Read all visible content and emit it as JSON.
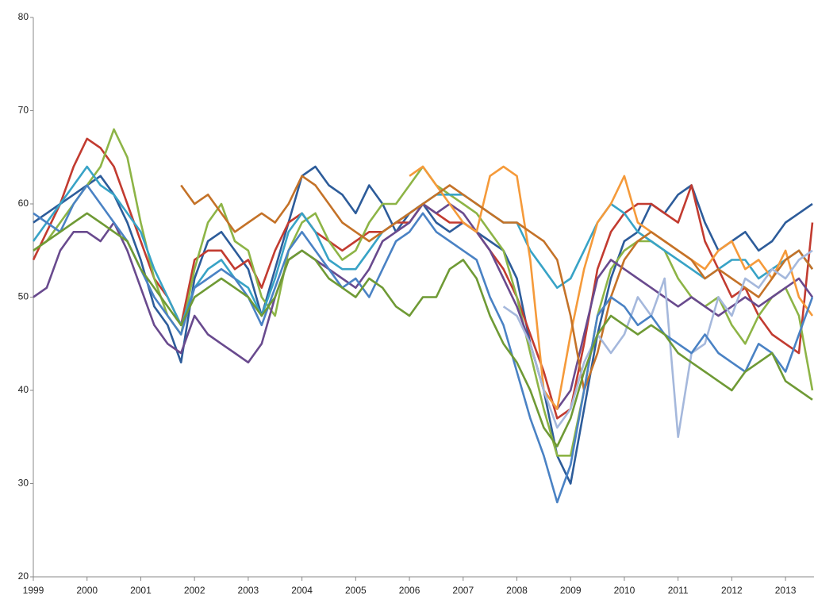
{
  "chart_data": {
    "type": "line",
    "x": [
      1999,
      1999.25,
      1999.5,
      1999.75,
      2000,
      2000.25,
      2000.5,
      2000.75,
      2001,
      2001.25,
      2001.5,
      2001.75,
      2002,
      2002.25,
      2002.5,
      2002.75,
      2003,
      2003.25,
      2003.5,
      2003.75,
      2004,
      2004.25,
      2004.5,
      2004.75,
      2005,
      2005.25,
      2005.5,
      2005.75,
      2006,
      2006.25,
      2006.5,
      2006.75,
      2007,
      2007.25,
      2007.5,
      2007.75,
      2008,
      2008.25,
      2008.5,
      2008.75,
      2009,
      2009.25,
      2009.5,
      2009.75,
      2010,
      2010.25,
      2010.5,
      2010.75,
      2011,
      2011.25,
      2011.5,
      2011.75,
      2012,
      2012.25,
      2012.5,
      2012.75,
      2013,
      2013.25,
      2013.5
    ],
    "xlim": [
      1999,
      2013.53
    ],
    "xticks": [
      1999,
      2000,
      2001,
      2002,
      2003,
      2004,
      2005,
      2006,
      2007,
      2008,
      2009,
      2010,
      2011,
      2012,
      2013
    ],
    "ylim": [
      20,
      80
    ],
    "yticks": [
      20,
      30,
      40,
      50,
      60,
      70,
      80
    ],
    "grid": false,
    "series": [
      {
        "color": "#2d5c9a",
        "values": [
          58,
          59,
          60,
          61,
          62,
          63,
          61,
          58,
          54,
          49,
          47,
          43,
          52,
          56,
          57,
          55,
          53,
          48,
          53,
          58,
          63,
          64,
          62,
          61,
          59,
          62,
          60,
          57,
          59,
          60,
          58,
          57,
          58,
          57,
          56,
          55,
          52,
          45,
          40,
          33,
          30,
          38,
          46,
          52,
          56,
          57,
          60,
          59,
          61,
          62,
          58,
          55,
          56,
          57,
          55,
          56,
          58,
          59,
          60
        ]
      },
      {
        "color": "#c23b30",
        "values": [
          54,
          57,
          60,
          64,
          67,
          66,
          64,
          60,
          56,
          52,
          50,
          47,
          54,
          55,
          55,
          53,
          54,
          51,
          55,
          58,
          59,
          57,
          56,
          55,
          56,
          57,
          57,
          58,
          58,
          60,
          59,
          58,
          58,
          57,
          55,
          53,
          50,
          46,
          42,
          37,
          38,
          45,
          53,
          57,
          59,
          60,
          60,
          59,
          58,
          62,
          56,
          53,
          50,
          51,
          48,
          46,
          45,
          44,
          58
        ]
      },
      {
        "color": "#8db446",
        "values": [
          55,
          56,
          58,
          60,
          62,
          64,
          68,
          65,
          58,
          52,
          48,
          46,
          53,
          58,
          60,
          56,
          55,
          50,
          48,
          55,
          58,
          59,
          56,
          54,
          55,
          58,
          60,
          60,
          62,
          64,
          62,
          61,
          60,
          59,
          57,
          55,
          50,
          44,
          38,
          33,
          33,
          40,
          48,
          53,
          55,
          56,
          56,
          55,
          52,
          50,
          49,
          50,
          47,
          45,
          48,
          50,
          51,
          48,
          40
        ]
      },
      {
        "color": "#694a8e",
        "values": [
          50,
          51,
          55,
          57,
          57,
          56,
          58,
          55,
          51,
          47,
          45,
          44,
          48,
          46,
          45,
          44,
          43,
          45,
          50,
          54,
          55,
          54,
          53,
          52,
          51,
          53,
          56,
          57,
          58,
          60,
          59,
          60,
          59,
          57,
          55,
          52,
          49,
          45,
          40,
          38,
          40,
          46,
          52,
          54,
          53,
          52,
          51,
          50,
          49,
          50,
          49,
          48,
          49,
          50,
          49,
          50,
          51,
          52,
          50
        ]
      },
      {
        "color": "#38a3c6",
        "values": [
          56,
          58,
          60,
          62,
          64,
          62,
          61,
          59,
          57,
          53,
          50,
          47,
          51,
          53,
          54,
          52,
          51,
          48,
          52,
          57,
          59,
          57,
          54,
          53,
          53,
          55,
          57,
          58,
          59,
          60,
          61,
          61,
          61,
          60,
          59,
          58,
          58,
          55,
          53,
          51,
          52,
          55,
          58,
          60,
          59,
          57,
          56,
          55,
          54,
          53,
          52,
          53,
          54,
          54,
          52,
          53,
          54,
          55,
          53
        ]
      },
      {
        "color": "#f59a3a",
        "values": [
          null,
          null,
          null,
          null,
          null,
          null,
          null,
          null,
          null,
          null,
          null,
          null,
          null,
          null,
          null,
          null,
          null,
          null,
          null,
          null,
          null,
          null,
          null,
          null,
          null,
          null,
          null,
          null,
          63,
          64,
          62,
          60,
          58,
          57,
          63,
          64,
          63,
          54,
          40,
          38,
          46,
          53,
          58,
          60,
          63,
          58,
          57,
          56,
          55,
          54,
          53,
          55,
          56,
          53,
          54,
          52,
          55,
          50,
          48
        ]
      },
      {
        "color": "#c47228",
        "values": [
          null,
          null,
          null,
          null,
          null,
          null,
          null,
          null,
          null,
          null,
          null,
          62,
          60,
          61,
          59,
          57,
          58,
          59,
          58,
          60,
          63,
          62,
          60,
          58,
          57,
          56,
          57,
          58,
          59,
          60,
          61,
          62,
          61,
          60,
          59,
          58,
          58,
          57,
          56,
          54,
          48,
          40,
          44,
          50,
          54,
          56,
          57,
          56,
          55,
          54,
          52,
          53,
          52,
          51,
          50,
          52,
          54,
          55,
          53
        ]
      },
      {
        "color": "#a5b8dc",
        "values": [
          null,
          null,
          null,
          null,
          null,
          null,
          null,
          null,
          null,
          null,
          null,
          null,
          null,
          null,
          null,
          null,
          null,
          null,
          null,
          null,
          null,
          null,
          null,
          null,
          null,
          null,
          null,
          null,
          null,
          null,
          null,
          null,
          null,
          null,
          null,
          49,
          48,
          45,
          40,
          36,
          38,
          43,
          46,
          44,
          46,
          50,
          48,
          52,
          35,
          44,
          45,
          50,
          48,
          52,
          51,
          53,
          52,
          54,
          55
        ]
      },
      {
        "color": "#4a82c4",
        "values": [
          59,
          58,
          57,
          60,
          62,
          60,
          58,
          56,
          53,
          50,
          48,
          46,
          51,
          52,
          53,
          52,
          50,
          47,
          51,
          55,
          57,
          55,
          53,
          51,
          52,
          50,
          53,
          56,
          57,
          59,
          57,
          56,
          55,
          54,
          50,
          47,
          42,
          37,
          33,
          28,
          32,
          40,
          48,
          50,
          49,
          47,
          48,
          46,
          45,
          44,
          46,
          44,
          43,
          42,
          45,
          44,
          42,
          46,
          50
        ]
      },
      {
        "color": "#6f9a35",
        "values": [
          55,
          56,
          57,
          58,
          59,
          58,
          57,
          56,
          53,
          51,
          49,
          47,
          50,
          51,
          52,
          51,
          50,
          48,
          50,
          54,
          55,
          54,
          52,
          51,
          50,
          52,
          51,
          49,
          48,
          50,
          50,
          53,
          54,
          52,
          48,
          45,
          43,
          40,
          36,
          34,
          37,
          42,
          46,
          48,
          47,
          46,
          47,
          46,
          44,
          43,
          42,
          41,
          40,
          42,
          43,
          44,
          41,
          40,
          39
        ]
      }
    ]
  }
}
